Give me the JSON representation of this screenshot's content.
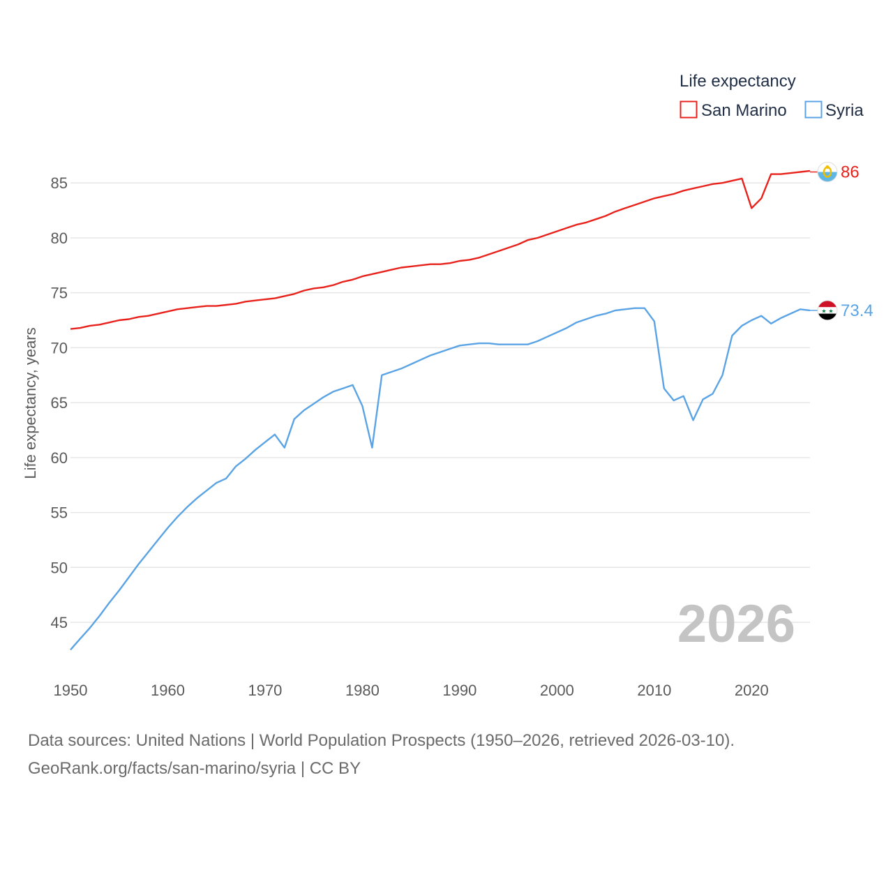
{
  "chart_data": {
    "type": "line",
    "title": "",
    "legend_title": "Life expectancy",
    "legend_position": "top-right",
    "ylabel": "Life expectancy, years",
    "xlabel": "",
    "xlim": [
      1950,
      2026
    ],
    "ylim": [
      41,
      88
    ],
    "x_ticks": [
      1950,
      1960,
      1970,
      1980,
      1990,
      2000,
      2010,
      2020
    ],
    "y_ticks": [
      45,
      50,
      55,
      60,
      65,
      70,
      75,
      80,
      85
    ],
    "grid": true,
    "year_label": "2026",
    "x": [
      1950,
      1951,
      1952,
      1953,
      1954,
      1955,
      1956,
      1957,
      1958,
      1959,
      1960,
      1961,
      1962,
      1963,
      1964,
      1965,
      1966,
      1967,
      1968,
      1969,
      1970,
      1971,
      1972,
      1973,
      1974,
      1975,
      1976,
      1977,
      1978,
      1979,
      1980,
      1981,
      1982,
      1983,
      1984,
      1985,
      1986,
      1987,
      1988,
      1989,
      1990,
      1991,
      1992,
      1993,
      1994,
      1995,
      1996,
      1997,
      1998,
      1999,
      2000,
      2001,
      2002,
      2003,
      2004,
      2005,
      2006,
      2007,
      2008,
      2009,
      2010,
      2011,
      2012,
      2013,
      2014,
      2015,
      2016,
      2017,
      2018,
      2019,
      2020,
      2021,
      2022,
      2023,
      2024,
      2025,
      2026
    ],
    "series": [
      {
        "name": "San Marino",
        "color": "#e8211b",
        "end_value": 86,
        "end_label": "86",
        "flag": "san-marino-flag-icon",
        "values": [
          71.7,
          71.8,
          72.0,
          72.1,
          72.3,
          72.5,
          72.6,
          72.8,
          72.9,
          73.1,
          73.3,
          73.5,
          73.6,
          73.7,
          73.8,
          73.8,
          73.9,
          74.0,
          74.2,
          74.3,
          74.4,
          74.5,
          74.7,
          74.9,
          75.2,
          75.4,
          75.5,
          75.7,
          76.0,
          76.2,
          76.5,
          76.7,
          76.9,
          77.1,
          77.3,
          77.4,
          77.5,
          77.6,
          77.6,
          77.7,
          77.9,
          78.0,
          78.2,
          78.5,
          78.8,
          79.1,
          79.4,
          79.8,
          80.0,
          80.3,
          80.6,
          80.9,
          81.2,
          81.4,
          81.7,
          82.0,
          82.4,
          82.7,
          83.0,
          83.3,
          83.6,
          83.8,
          84.0,
          84.3,
          84.5,
          84.7,
          84.9,
          85.0,
          85.2,
          85.4,
          82.7,
          83.6,
          85.8,
          85.8,
          85.9,
          86.0,
          86.1
        ]
      },
      {
        "name": "Syria",
        "color": "#5aa3e4",
        "end_value": 73.4,
        "end_label": "73.4",
        "flag": "syria-flag-icon",
        "values": [
          42.5,
          43.5,
          44.5,
          45.6,
          46.8,
          47.9,
          49.1,
          50.3,
          51.4,
          52.5,
          53.6,
          54.6,
          55.5,
          56.3,
          57.0,
          57.7,
          58.1,
          59.2,
          59.9,
          60.7,
          61.4,
          62.1,
          60.9,
          63.5,
          64.3,
          64.9,
          65.5,
          66.0,
          66.3,
          66.6,
          64.7,
          60.9,
          67.5,
          67.8,
          68.1,
          68.5,
          68.9,
          69.3,
          69.6,
          69.9,
          70.2,
          70.3,
          70.4,
          70.4,
          70.3,
          70.3,
          70.3,
          70.3,
          70.6,
          71.0,
          71.4,
          71.8,
          72.3,
          72.6,
          72.9,
          73.1,
          73.4,
          73.5,
          73.6,
          73.6,
          72.4,
          66.3,
          65.2,
          65.6,
          63.4,
          65.3,
          65.8,
          67.5,
          71.1,
          72.0,
          72.5,
          72.9,
          72.2,
          72.7,
          73.1,
          73.5,
          73.4
        ]
      }
    ]
  },
  "footer": {
    "line1": "Data sources: United Nations | World Population Prospects (1950–2026, retrieved 2026-03-10).",
    "line2": "GeoRank.org/facts/san-marino/syria | CC BY"
  }
}
